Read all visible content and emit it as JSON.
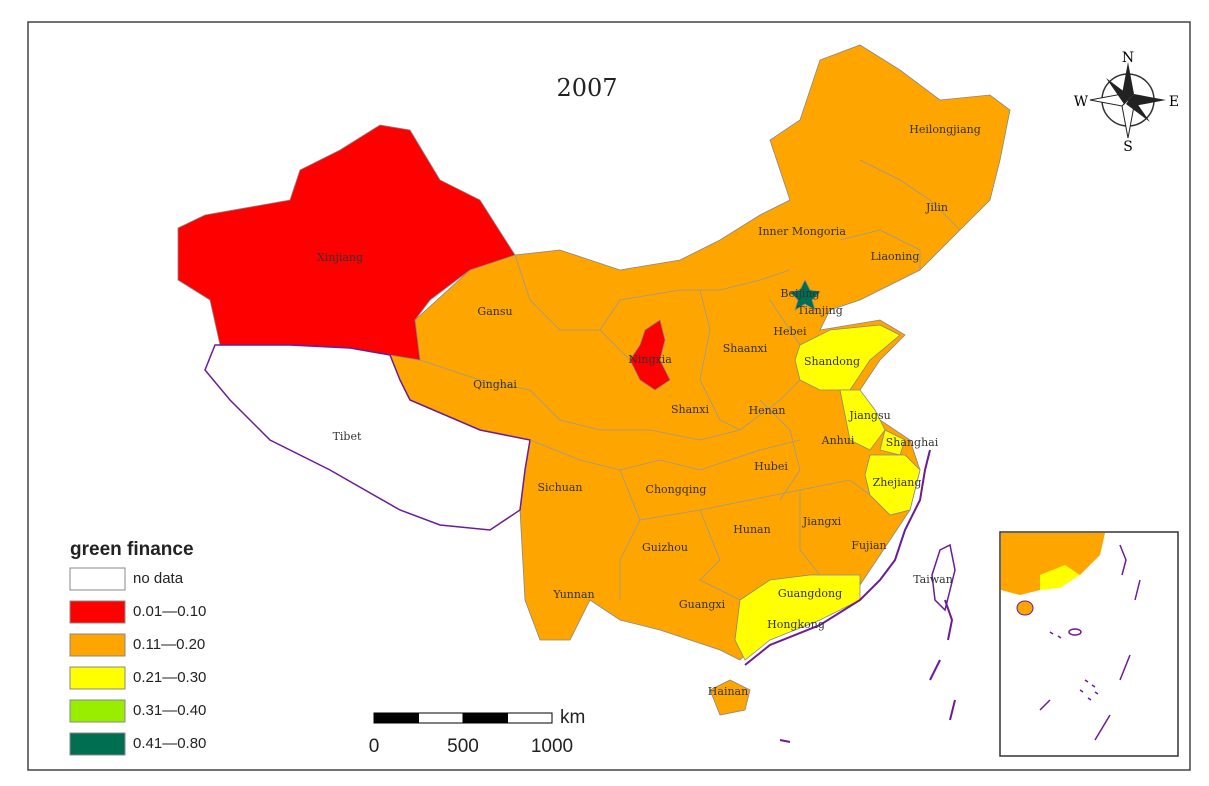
{
  "title": "2007",
  "compass": {
    "north": "N",
    "south": "S",
    "east": "E",
    "west": "W"
  },
  "legend": {
    "title": "green finance",
    "items": [
      {
        "label": "no data",
        "color": "#ffffff"
      },
      {
        "label": "0.01—0.10",
        "color": "#ff0000"
      },
      {
        "label": "0.11—0.20",
        "color": "#ffa500"
      },
      {
        "label": "0.21—0.30",
        "color": "#ffff00"
      },
      {
        "label": "0.31—0.40",
        "color": "#99ee00"
      },
      {
        "label": "0.41—0.80",
        "color": "#006e50"
      }
    ]
  },
  "scale_bar": {
    "labels": [
      0,
      500,
      1000
    ],
    "unit": "km"
  },
  "regions": [
    {
      "name": "Xinjiang",
      "color": "#ff0000"
    },
    {
      "name": "Tibet",
      "color": "#ffffff"
    },
    {
      "name": "Qinghai",
      "color": "#ffa500"
    },
    {
      "name": "Gansu",
      "color": "#ffa500"
    },
    {
      "name": "Ningxia",
      "color": "#ff0000"
    },
    {
      "name": "Inner Mongoria",
      "color": "#ffa500"
    },
    {
      "name": "Heilongjiang",
      "color": "#ffa500"
    },
    {
      "name": "Jilin",
      "color": "#ffa500"
    },
    {
      "name": "Liaoning",
      "color": "#ffa500"
    },
    {
      "name": "Beijing",
      "color": "#006e50"
    },
    {
      "name": "Tianjing",
      "color": "#ffa500"
    },
    {
      "name": "Hebei",
      "color": "#ffa500"
    },
    {
      "name": "Shaanxi",
      "color": "#ffa500"
    },
    {
      "name": "Shanxi",
      "color": "#ffa500"
    },
    {
      "name": "Henan",
      "color": "#ffa500"
    },
    {
      "name": "Shandong",
      "color": "#ffff00"
    },
    {
      "name": "Jiangsu",
      "color": "#ffff00"
    },
    {
      "name": "Shanghai",
      "color": "#ffff00"
    },
    {
      "name": "Anhui",
      "color": "#ffa500"
    },
    {
      "name": "Hubei",
      "color": "#ffa500"
    },
    {
      "name": "Zhejiang",
      "color": "#ffff00"
    },
    {
      "name": "Sichuan",
      "color": "#ffa500"
    },
    {
      "name": "Chongqing",
      "color": "#ffa500"
    },
    {
      "name": "Jiangxi",
      "color": "#ffa500"
    },
    {
      "name": "Hunan",
      "color": "#ffa500"
    },
    {
      "name": "Fujian",
      "color": "#ffa500"
    },
    {
      "name": "Guizhou",
      "color": "#ffa500"
    },
    {
      "name": "Yunnan",
      "color": "#ffa500"
    },
    {
      "name": "Guangxi",
      "color": "#ffa500"
    },
    {
      "name": "Guangdong",
      "color": "#ffff00"
    },
    {
      "name": "Hongkong",
      "color": "#ffff00"
    },
    {
      "name": "Taiwan",
      "color": "#ffffff"
    },
    {
      "name": "Hainan",
      "color": "#ffa500"
    }
  ]
}
